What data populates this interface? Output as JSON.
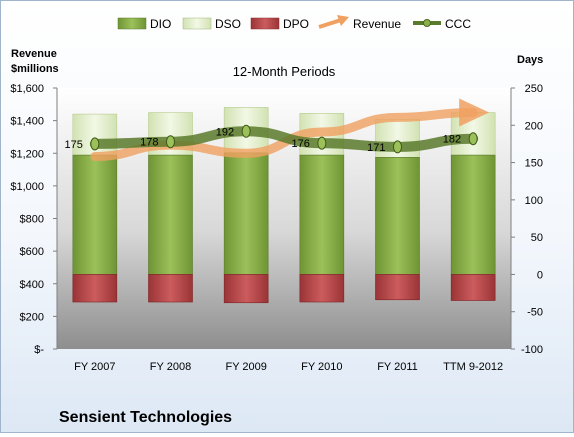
{
  "chart_data": {
    "type": "bar",
    "subtitle": "12-Month Periods",
    "company": "Sensient Technologies",
    "left_axis": {
      "label_line1": "Revenue",
      "label_line2": "$millions",
      "ylim": [
        0,
        1600
      ],
      "ticks": [
        0,
        200,
        400,
        600,
        800,
        1000,
        1200,
        1400,
        1600
      ],
      "tick_labels": [
        "$-",
        "$200",
        "$400",
        "$600",
        "$800",
        "$1,000",
        "$1,200",
        "$1,400",
        "$1,600"
      ]
    },
    "right_axis": {
      "label": "Days",
      "ylim": [
        -100,
        250
      ],
      "ticks": [
        -100,
        -50,
        0,
        50,
        100,
        150,
        200,
        250
      ],
      "tick_labels": [
        "-100",
        "-50",
        "0",
        "50",
        "100",
        "150",
        "200",
        "250"
      ]
    },
    "categories": [
      "FY 2007",
      "FY 2008",
      "FY 2009",
      "FY 2010",
      "FY 2011",
      "TTM 9-2012"
    ],
    "legend_position": "top",
    "series": [
      {
        "name": "DIO",
        "axis": "right",
        "type": "stacked-bar",
        "color": "#8cb04c",
        "values": [
          160,
          160,
          163,
          160,
          157,
          160
        ]
      },
      {
        "name": "DSO",
        "axis": "right",
        "type": "stacked-bar",
        "color": "#e2eecb",
        "values": [
          55,
          57,
          61,
          56,
          51,
          57
        ]
      },
      {
        "name": "DPO",
        "axis": "right",
        "type": "negative-bar",
        "color": "#b8484a",
        "values": [
          37,
          37,
          38,
          37,
          34,
          35
        ]
      },
      {
        "name": "Revenue",
        "axis": "left",
        "type": "arrow-line",
        "color": "#f0a060",
        "values": [
          1180,
          1250,
          1200,
          1330,
          1420,
          1450
        ]
      },
      {
        "name": "CCC",
        "axis": "right",
        "type": "line",
        "color": "#5a7a2c",
        "values": [
          175,
          178,
          192,
          176,
          171,
          182
        ],
        "data_labels": [
          "175",
          "178",
          "192",
          "176",
          "171",
          "182"
        ]
      }
    ]
  }
}
